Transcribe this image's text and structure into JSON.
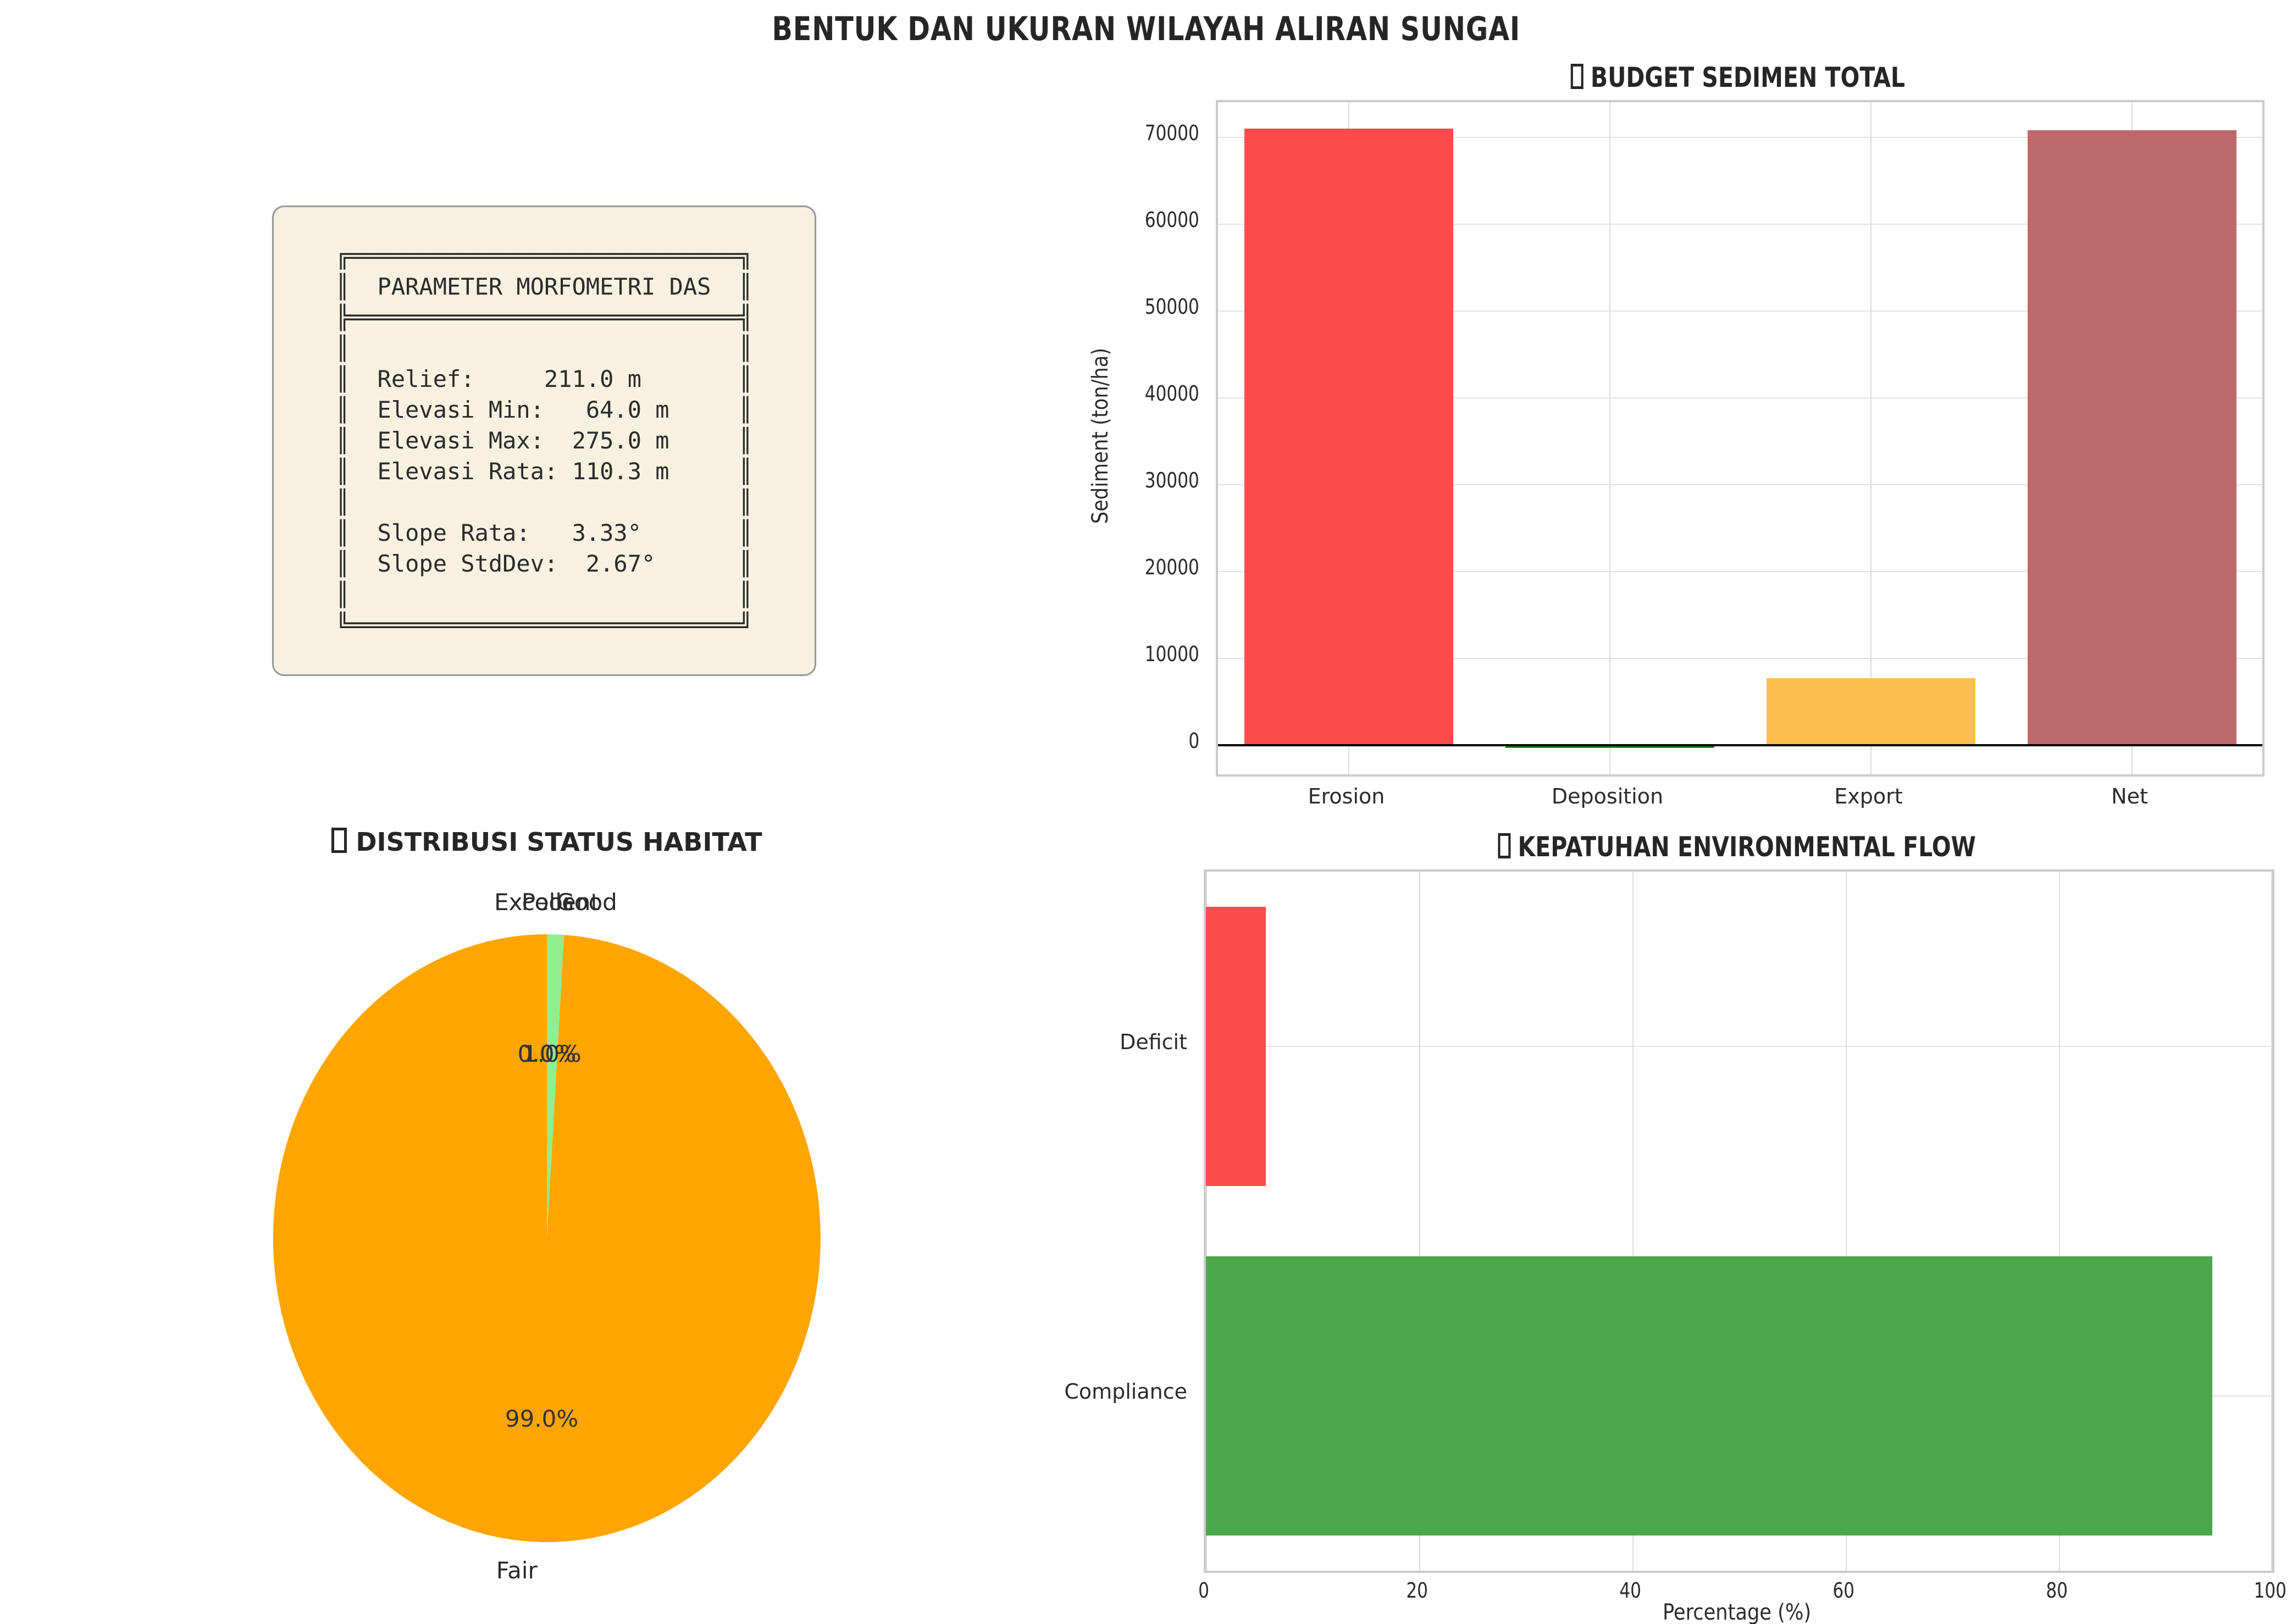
{
  "figure": {
    "title": "BENTUK DAN UKURAN WILAYAH ALIRAN SUNGAI"
  },
  "param_box": {
    "bg_color": "#F7F1E2",
    "lines": [
      "╔════════════════════════════╗",
      "║  PARAMETER MORFOMETRI DAS  ║",
      "╠════════════════════════════╣",
      "║                            ║",
      "║  Relief:     211.0 m       ║",
      "║  Elevasi Min:   64.0 m     ║",
      "║  Elevasi Max:  275.0 m     ║",
      "║  Elevasi Rata: 110.3 m     ║",
      "║                            ║",
      "║  Slope Rata:   3.33°       ║",
      "║  Slope StdDev:  2.67°      ║",
      "║                            ║",
      "╚════════════════════════════╝"
    ]
  },
  "chart_data": [
    {
      "type": "bar",
      "title": "BUDGET SEDIMEN TOTAL",
      "title_icon": "missing-emoji-glyph",
      "categories": [
        "Erosion",
        "Deposition",
        "Export",
        "Net"
      ],
      "values": [
        71000,
        -300,
        7700,
        70800
      ],
      "colors": [
        "#FD4B4B",
        "#228B22",
        "#FDC04E",
        "#BF6A6A"
      ],
      "ylabel": "Sediment (ton/ha)",
      "yticks": [
        0,
        10000,
        20000,
        30000,
        40000,
        50000,
        60000,
        70000
      ],
      "ylim": [
        -3400,
        74000
      ],
      "grid": true,
      "zero_line": true,
      "legend_position": "none"
    },
    {
      "type": "pie",
      "title": "DISTRIBUSI STATUS HABITAT",
      "title_icon": "missing-emoji-glyph",
      "start_angle": 90,
      "direction": "clockwise",
      "slices": [
        {
          "label": "Excellent",
          "value": 0.0,
          "pct_label": "0.0%"
        },
        {
          "label": "Good",
          "value": 1.0,
          "pct_label": "1.0%",
          "color": "#90EE90"
        },
        {
          "label": "Fair",
          "value": 99.0,
          "pct_label": "99.0%",
          "color": "#FFA500"
        },
        {
          "label": "Poor",
          "value": 0.0,
          "pct_label": "0.0%"
        }
      ]
    },
    {
      "type": "barh",
      "title": "KEPATUHAN ENVIRONMENTAL FLOW",
      "title_icon": "missing-emoji-glyph",
      "categories": [
        "Deficit",
        "Compliance"
      ],
      "values": [
        5.6,
        94.4
      ],
      "colors": [
        "#FD4B4B",
        "#4CA84C"
      ],
      "xlabel": "Percentage (%)",
      "xticks": [
        0,
        20,
        40,
        60,
        80,
        100
      ],
      "xlim": [
        0,
        100
      ],
      "grid": true
    }
  ]
}
